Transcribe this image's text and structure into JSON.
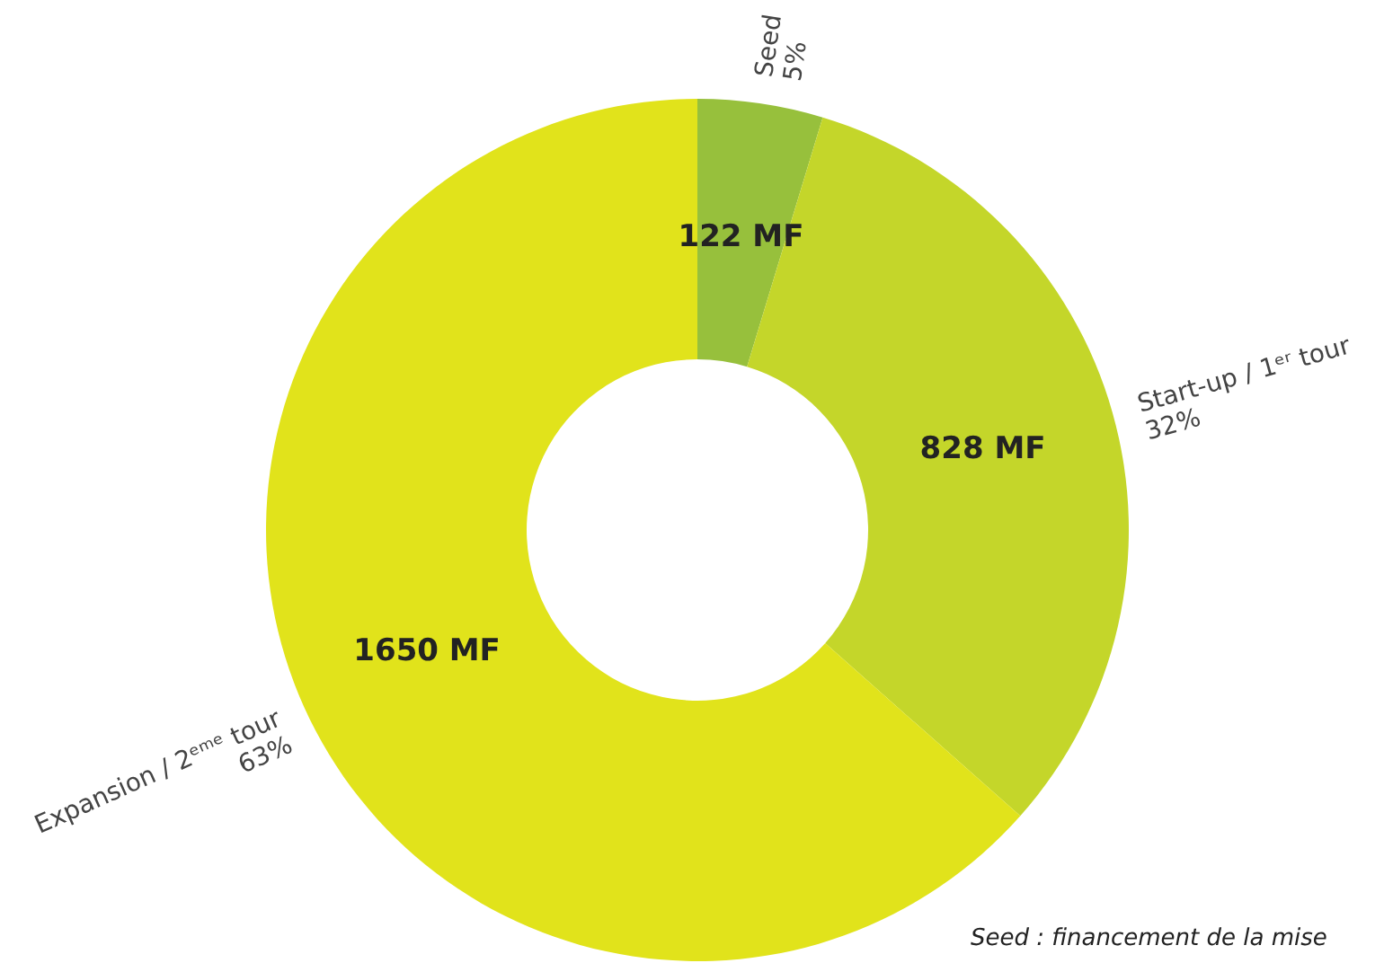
{
  "chart_data": {
    "type": "donut",
    "categories": [
      "Seed",
      "Start-up / 1ᵉʳ tour",
      "Expansion / 2ᵉᵐᵉ tour"
    ],
    "values": [
      122,
      828,
      1650
    ],
    "colors": [
      "#97c03c",
      "#c4d62a",
      "#e1e31b"
    ],
    "value_labels": [
      "122 MF",
      "828 MF",
      "1650 MF"
    ],
    "annotations": [
      {
        "text": "5%",
        "x": "Seed"
      },
      {
        "text": "32%",
        "x": "Start-up / 1ᵉʳ tour"
      },
      {
        "text": "63%",
        "x": "Expansion / 2ᵉᵐᵉ tour"
      },
      "Seed : financement de la mise"
    ]
  }
}
